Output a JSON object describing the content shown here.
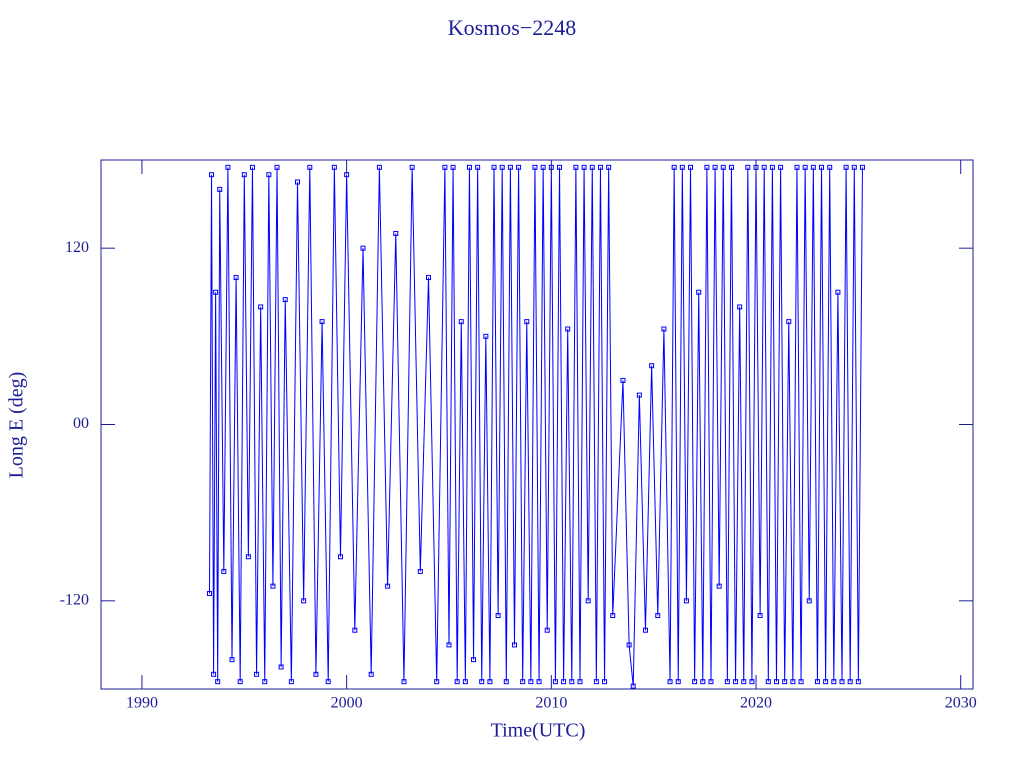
{
  "chart_data": {
    "type": "line",
    "title": "Kosmos−2248",
    "xlabel": "Time(UTC)",
    "ylabel": "Long E (deg)",
    "xlim": [
      1988,
      2030.6
    ],
    "ylim": [
      -180,
      180
    ],
    "xticks": [
      1990,
      2000,
      2010,
      2020,
      2030
    ],
    "yticks": [
      -120,
      {
        "value": 0,
        "label": "00"
      },
      120
    ],
    "axis_color": "#1c1c96",
    "series": [
      {
        "name": "Kosmos-2248",
        "color": "#0000ff",
        "x": [
          1993.3,
          1993.4,
          1993.5,
          1993.6,
          1993.7,
          1993.8,
          1994.0,
          1994.2,
          1994.4,
          1994.6,
          1994.8,
          1995.0,
          1995.2,
          1995.4,
          1995.6,
          1995.8,
          1996.0,
          1996.2,
          1996.4,
          1996.6,
          1996.8,
          1997.0,
          1997.3,
          1997.6,
          1997.9,
          1998.2,
          1998.5,
          1998.8,
          1999.1,
          1999.4,
          1999.7,
          2000.0,
          2000.4,
          2000.8,
          2001.2,
          2001.6,
          2002.0,
          2002.4,
          2002.8,
          2003.2,
          2003.6,
          2004.0,
          2004.4,
          2004.8,
          2005.0,
          2005.2,
          2005.4,
          2005.6,
          2005.8,
          2006.0,
          2006.2,
          2006.4,
          2006.6,
          2006.8,
          2007.0,
          2007.2,
          2007.4,
          2007.6,
          2007.8,
          2008.0,
          2008.2,
          2008.4,
          2008.6,
          2008.8,
          2009.0,
          2009.2,
          2009.4,
          2009.6,
          2009.8,
          2010.0,
          2010.2,
          2010.4,
          2010.6,
          2010.8,
          2011.0,
          2011.2,
          2011.4,
          2011.6,
          2011.8,
          2012.0,
          2012.2,
          2012.4,
          2012.6,
          2012.8,
          2013.0,
          2013.5,
          2013.8,
          2014.0,
          2014.3,
          2014.6,
          2014.9,
          2015.2,
          2015.5,
          2015.8,
          2016.0,
          2016.2,
          2016.4,
          2016.6,
          2016.8,
          2017.0,
          2017.2,
          2017.4,
          2017.6,
          2017.8,
          2018.0,
          2018.2,
          2018.4,
          2018.6,
          2018.8,
          2019.0,
          2019.2,
          2019.4,
          2019.6,
          2019.8,
          2020.0,
          2020.2,
          2020.4,
          2020.6,
          2020.8,
          2021.0,
          2021.2,
          2021.4,
          2021.6,
          2021.8,
          2022.0,
          2022.2,
          2022.4,
          2022.6,
          2022.8,
          2023.0,
          2023.2,
          2023.4,
          2023.6,
          2023.8,
          2024.0,
          2024.2,
          2024.4,
          2024.6,
          2024.8,
          2025.0,
          2025.2
        ],
        "values": [
          -115,
          170,
          -170,
          90,
          -175,
          160,
          -100,
          175,
          -160,
          100,
          -175,
          170,
          -90,
          175,
          -170,
          80,
          -175,
          170,
          -110,
          175,
          -165,
          85,
          -175,
          165,
          -120,
          175,
          -170,
          70,
          -175,
          175,
          -90,
          170,
          -140,
          120,
          -170,
          175,
          -110,
          130,
          -175,
          175,
          -100,
          100,
          -175,
          175,
          -150,
          175,
          -175,
          70,
          -175,
          175,
          -160,
          175,
          -175,
          60,
          -175,
          175,
          -130,
          175,
          -175,
          175,
          -150,
          175,
          -175,
          70,
          -175,
          175,
          -175,
          175,
          -140,
          175,
          -175,
          175,
          -175,
          65,
          -175,
          175,
          -175,
          175,
          -120,
          175,
          -175,
          175,
          -175,
          175,
          -130,
          30,
          -150,
          -178,
          20,
          -140,
          40,
          -130,
          65,
          -175,
          175,
          -175,
          175,
          -120,
          175,
          -175,
          90,
          -175,
          175,
          -175,
          175,
          -110,
          175,
          -175,
          175,
          -175,
          80,
          -175,
          175,
          -175,
          175,
          -130,
          175,
          -175,
          175,
          -175,
          175,
          -175,
          70,
          -175,
          175,
          -175,
          175,
          -120,
          175,
          -175,
          175,
          -175,
          175,
          -175,
          90,
          -175,
          175,
          -175,
          175,
          -175,
          175
        ]
      }
    ]
  }
}
